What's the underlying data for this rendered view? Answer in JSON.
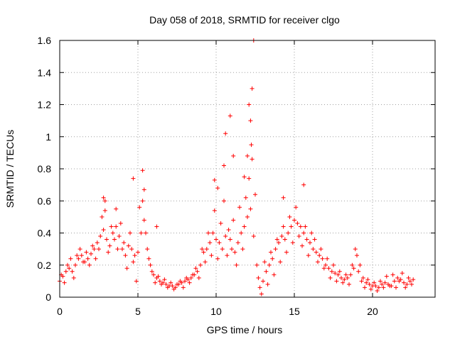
{
  "chart_data": {
    "type": "scatter",
    "title": "Day 058 of 2018, SRMTID for receiver clgo",
    "xlabel": "GPS time / hours",
    "ylabel": "SRMTID / TECUs",
    "xlim": [
      0,
      24
    ],
    "ylim": [
      0,
      1.6
    ],
    "xticks": [
      0,
      5,
      10,
      15,
      20
    ],
    "yticks": [
      0,
      0.2,
      0.4,
      0.6,
      0.8,
      1.0,
      1.2,
      1.4,
      1.6
    ],
    "xtick_labels": [
      "0",
      "5",
      "10",
      "15",
      "20"
    ],
    "ytick_labels": [
      "0",
      "0.2",
      "0.4",
      "0.6",
      "0.8",
      "1",
      "1.2",
      "1.4",
      "1.6"
    ],
    "grid": true,
    "marker": "+",
    "color": "#ff0000",
    "series": [
      {
        "name": "SRMTID",
        "x": [
          0.0,
          0.2,
          0.4,
          0.6,
          0.8,
          1.0,
          1.2,
          1.4,
          1.6,
          1.8,
          2.0,
          2.2,
          2.4,
          2.6,
          2.8,
          3.0,
          3.2,
          3.4,
          3.6,
          3.8,
          4.0,
          4.2,
          4.4,
          4.6,
          4.8,
          5.0,
          5.2,
          5.4,
          5.6,
          5.8,
          6.0,
          6.2,
          6.4,
          6.6,
          6.8,
          7.0,
          7.2,
          7.4,
          7.6,
          7.8,
          8.0,
          8.2,
          8.4,
          8.6,
          8.8,
          9.0,
          9.2,
          9.4,
          9.6,
          9.8,
          10.0,
          10.2,
          10.4,
          10.6,
          10.8,
          11.0,
          11.2,
          11.4,
          11.6,
          11.8,
          12.0,
          12.2,
          12.4,
          12.6,
          12.8,
          13.0,
          13.2,
          13.4,
          13.6,
          13.8,
          14.0,
          14.2,
          14.4,
          14.6,
          14.8,
          15.0,
          15.2,
          15.4,
          15.6,
          15.8,
          16.0,
          16.2,
          16.4,
          16.6,
          16.8,
          17.0,
          17.2,
          17.4,
          17.6,
          17.8,
          18.0,
          18.2,
          18.4,
          18.6,
          18.8,
          19.0,
          19.2,
          19.4,
          19.6,
          19.8,
          20.0,
          20.2,
          20.4,
          20.6,
          20.8,
          21.0,
          21.2,
          21.4,
          21.6,
          21.8,
          22.0,
          22.2,
          22.4,
          22.6,
          0.1,
          0.3,
          0.5,
          0.7,
          0.9,
          1.1,
          1.3,
          1.5,
          1.7,
          1.9,
          2.1,
          2.3,
          2.5,
          2.7,
          2.9,
          3.1,
          3.3,
          3.5,
          3.7,
          3.9,
          4.1,
          4.3,
          4.5,
          4.7,
          4.9,
          5.1,
          5.3,
          5.5,
          5.7,
          5.9,
          6.1,
          6.3,
          6.5,
          6.7,
          6.9,
          7.1,
          7.3,
          7.5,
          7.7,
          7.9,
          8.1,
          8.3,
          8.5,
          8.7,
          8.9,
          9.1,
          9.3,
          9.5,
          9.7,
          9.9,
          10.1,
          10.3,
          10.5,
          10.7,
          10.9,
          11.1,
          11.3,
          11.5,
          11.7,
          11.9,
          12.1,
          12.3,
          12.5,
          12.7,
          12.9,
          13.1,
          13.3,
          13.5,
          13.7,
          13.9,
          14.1,
          14.3,
          14.5,
          14.7,
          14.9,
          15.1,
          15.3,
          15.5,
          15.7,
          15.9,
          16.1,
          16.3,
          16.5,
          16.7,
          16.9,
          17.1,
          17.3,
          17.5,
          17.7,
          17.9,
          18.1,
          18.3,
          18.5,
          18.7,
          18.9,
          19.1,
          19.3,
          19.5,
          19.7,
          19.9,
          20.1,
          20.3,
          20.5,
          20.7,
          20.9,
          21.1,
          21.3,
          21.5,
          21.7,
          21.9,
          22.1,
          22.3,
          22.5,
          2.8,
          5.3,
          10.9,
          12.1,
          12.3,
          12.4,
          12.25,
          10.6,
          15.6,
          4.7,
          5.4,
          9.9,
          10.5,
          12.0,
          12.2,
          14.3,
          2.9,
          3.6,
          6.2,
          10.1,
          11.1,
          11.8
        ],
        "y": [
          0.1,
          0.13,
          0.16,
          0.18,
          0.16,
          0.2,
          0.24,
          0.26,
          0.22,
          0.24,
          0.27,
          0.3,
          0.34,
          0.38,
          0.42,
          0.36,
          0.32,
          0.4,
          0.44,
          0.38,
          0.3,
          0.26,
          0.32,
          0.3,
          0.26,
          0.28,
          0.4,
          0.48,
          0.3,
          0.2,
          0.14,
          0.12,
          0.1,
          0.09,
          0.08,
          0.07,
          0.07,
          0.06,
          0.08,
          0.09,
          0.1,
          0.11,
          0.12,
          0.14,
          0.16,
          0.2,
          0.28,
          0.3,
          0.34,
          0.4,
          0.36,
          0.34,
          0.3,
          0.38,
          0.42,
          0.3,
          0.28,
          0.34,
          0.4,
          0.44,
          0.5,
          0.55,
          0.38,
          0.2,
          0.06,
          0.1,
          0.16,
          0.2,
          0.24,
          0.3,
          0.34,
          0.38,
          0.36,
          0.4,
          0.44,
          0.48,
          0.46,
          0.44,
          0.4,
          0.36,
          0.34,
          0.3,
          0.28,
          0.26,
          0.24,
          0.2,
          0.18,
          0.16,
          0.15,
          0.14,
          0.12,
          0.11,
          0.12,
          0.14,
          0.18,
          0.26,
          0.2,
          0.12,
          0.09,
          0.08,
          0.07,
          0.07,
          0.06,
          0.08,
          0.09,
          0.08,
          0.07,
          0.1,
          0.12,
          0.11,
          0.09,
          0.08,
          0.1,
          0.11,
          0.14,
          0.09,
          0.2,
          0.24,
          0.12,
          0.26,
          0.3,
          0.22,
          0.28,
          0.2,
          0.32,
          0.24,
          0.3,
          0.5,
          0.54,
          0.28,
          0.44,
          0.36,
          0.3,
          0.46,
          0.34,
          0.18,
          0.4,
          0.22,
          0.1,
          0.56,
          0.6,
          0.4,
          0.24,
          0.16,
          0.09,
          0.13,
          0.08,
          0.11,
          0.06,
          0.09,
          0.05,
          0.08,
          0.1,
          0.06,
          0.12,
          0.09,
          0.14,
          0.18,
          0.12,
          0.3,
          0.22,
          0.4,
          0.26,
          0.54,
          0.24,
          0.46,
          0.6,
          0.26,
          0.36,
          0.48,
          0.2,
          0.56,
          0.3,
          0.62,
          0.74,
          0.86,
          0.64,
          0.12,
          0.02,
          0.22,
          0.08,
          0.28,
          0.14,
          0.36,
          0.22,
          0.44,
          0.28,
          0.5,
          0.34,
          0.56,
          0.38,
          0.32,
          0.44,
          0.26,
          0.4,
          0.36,
          0.22,
          0.3,
          0.18,
          0.24,
          0.12,
          0.2,
          0.1,
          0.16,
          0.09,
          0.14,
          0.08,
          0.2,
          0.3,
          0.16,
          0.1,
          0.06,
          0.11,
          0.05,
          0.09,
          0.04,
          0.1,
          0.06,
          0.13,
          0.07,
          0.14,
          0.06,
          0.1,
          0.15,
          0.06,
          0.12,
          0.08,
          0.62,
          0.79,
          1.13,
          1.2,
          1.3,
          1.6,
          0.95,
          1.02,
          0.7,
          0.74,
          0.67,
          0.73,
          0.82,
          0.88,
          1.1,
          0.62,
          0.6,
          0.55,
          0.44,
          0.68,
          0.88,
          0.75
        ]
      }
    ]
  }
}
